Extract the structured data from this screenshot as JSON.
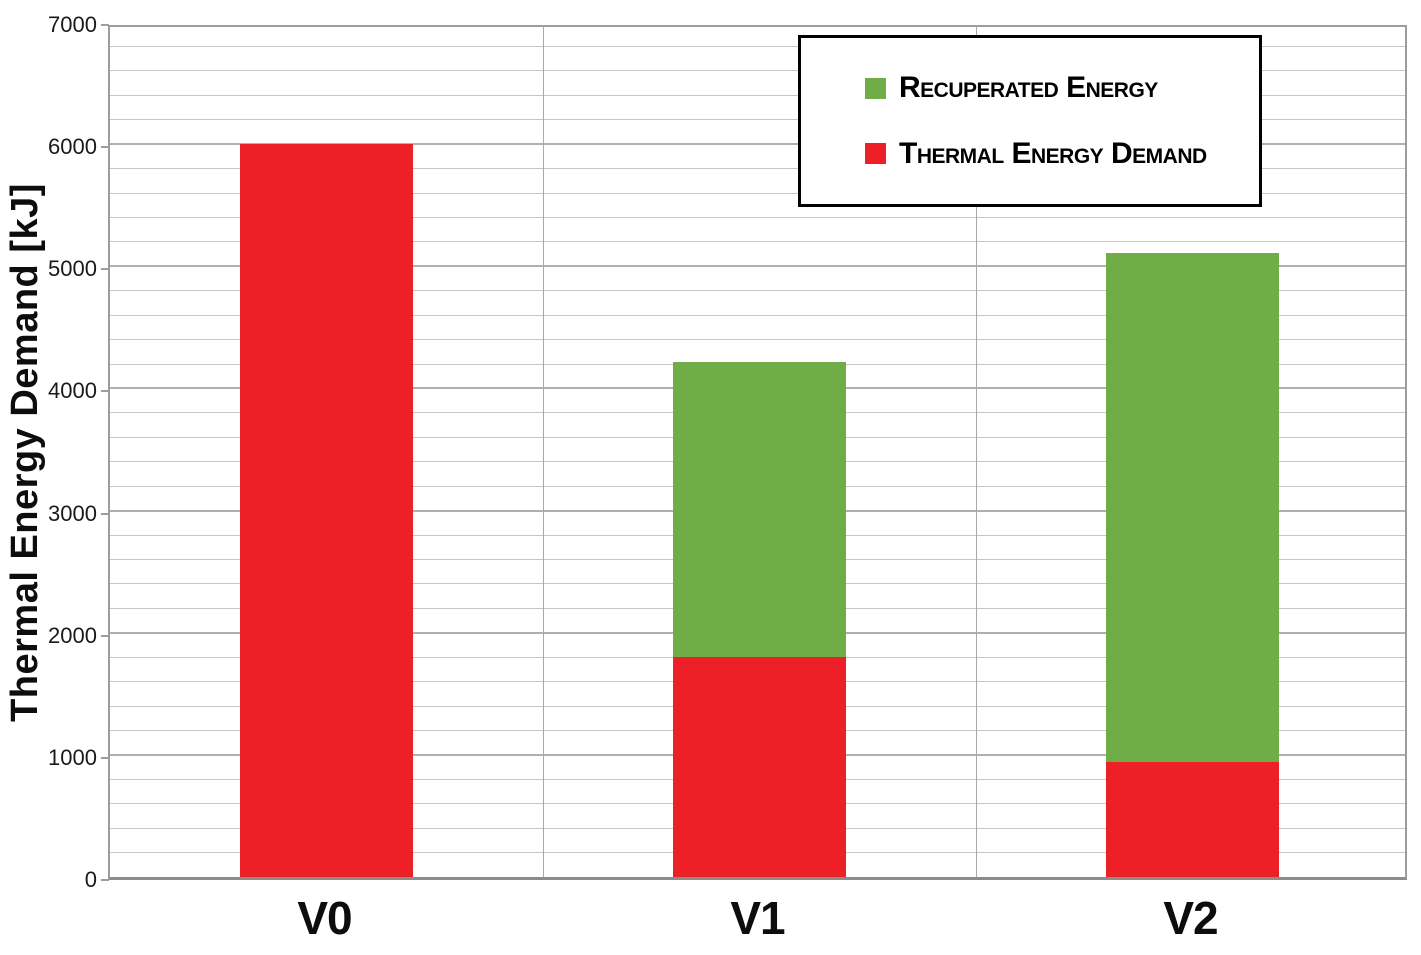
{
  "chart_data": {
    "type": "bar",
    "stacked": true,
    "title": "",
    "xlabel": "",
    "ylabel": "Thermal Energy Demand [kJ]",
    "categories": [
      "V0",
      "V1",
      "V2"
    ],
    "series": [
      {
        "name": "Thermal Energy Demand",
        "color": "#ED2027",
        "values": [
          6000,
          1800,
          940
        ]
      },
      {
        "name": "Recuperated Energy",
        "color": "#70AC48",
        "values": [
          0,
          2420,
          4170
        ]
      }
    ],
    "totals": [
      6000,
      4220,
      5110
    ],
    "ylim": [
      0,
      7000
    ],
    "ytick_step": 1000,
    "ytick_labels": [
      "0",
      "1000",
      "2000",
      "3000",
      "4000",
      "5000",
      "6000",
      "7000"
    ],
    "minor_gridline_step": 200,
    "grid": true,
    "legend_position": "top-right",
    "legend": {
      "entries": [
        {
          "label": "Recuperated Energy",
          "swatch": "#70AC48"
        },
        {
          "label": "Thermal Energy Demand",
          "swatch": "#ED2027"
        }
      ]
    },
    "colors": {
      "red_series": "#ED2027",
      "green_series": "#70AC48",
      "minor_gridline": "#C6C6C6",
      "major_gridline": "#B0B0B0",
      "plot_border": "#9D9D9D",
      "legend_border": "#000000"
    }
  }
}
